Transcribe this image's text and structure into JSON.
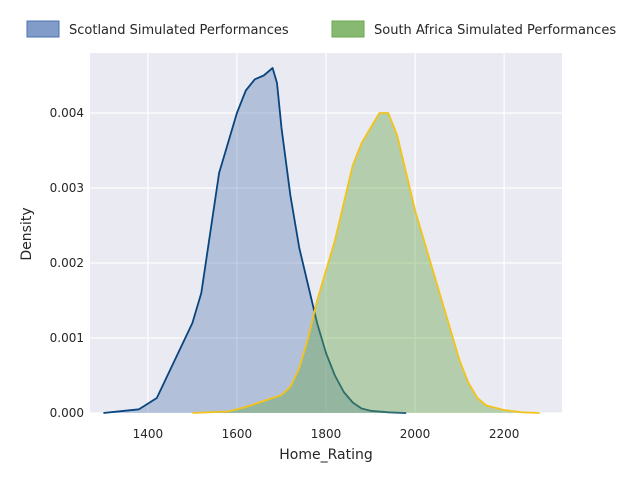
{
  "chart_data": {
    "type": "area",
    "title": "",
    "xlabel": "Home_Rating",
    "ylabel": "Density",
    "xlim": [
      1270,
      2330
    ],
    "ylim": [
      0,
      0.0048
    ],
    "xticks": [
      1400,
      1600,
      1800,
      2000,
      2200
    ],
    "yticks": [
      0.0,
      0.001,
      0.002,
      0.003,
      0.004
    ],
    "ytick_labels": [
      "0.000",
      "0.001",
      "0.002",
      "0.003",
      "0.004"
    ],
    "grid": true,
    "legend_position": "top",
    "series": [
      {
        "name": "Scotland Simulated Performances",
        "line_color": "#08457e",
        "fill_color": "#4c72b0",
        "fill_opacity": 0.35,
        "x": [
          1300,
          1380,
          1420,
          1440,
          1460,
          1480,
          1500,
          1520,
          1540,
          1560,
          1580,
          1600,
          1620,
          1640,
          1660,
          1680,
          1690,
          1700,
          1720,
          1740,
          1760,
          1780,
          1800,
          1820,
          1840,
          1860,
          1880,
          1900,
          1940,
          1980
        ],
        "y": [
          0.0,
          5e-05,
          0.0002,
          0.00045,
          0.0007,
          0.00095,
          0.0012,
          0.0016,
          0.0024,
          0.0032,
          0.0036,
          0.004,
          0.0043,
          0.00445,
          0.0045,
          0.0046,
          0.0044,
          0.0038,
          0.0029,
          0.0022,
          0.0017,
          0.0012,
          0.0008,
          0.0005,
          0.00028,
          0.00014,
          6e-05,
          3e-05,
          1e-05,
          0.0
        ]
      },
      {
        "name": "South Africa Simulated Performances",
        "line_color": "#f2c41a",
        "fill_color": "#6aa84f",
        "fill_opacity": 0.42,
        "x": [
          1500,
          1580,
          1620,
          1660,
          1700,
          1720,
          1740,
          1760,
          1780,
          1800,
          1820,
          1840,
          1860,
          1880,
          1900,
          1920,
          1940,
          1960,
          1980,
          2000,
          2020,
          2040,
          2060,
          2080,
          2100,
          2120,
          2140,
          2160,
          2200,
          2240,
          2280
        ],
        "y": [
          0.0,
          2e-05,
          8e-05,
          0.00016,
          0.00024,
          0.00035,
          0.0006,
          0.001,
          0.0015,
          0.0019,
          0.0023,
          0.0028,
          0.0033,
          0.0036,
          0.0038,
          0.004,
          0.004,
          0.0037,
          0.0032,
          0.0027,
          0.0023,
          0.0019,
          0.0015,
          0.0011,
          0.0007,
          0.0004,
          0.0002,
          0.0001,
          4e-05,
          1e-05,
          0.0
        ]
      }
    ]
  }
}
